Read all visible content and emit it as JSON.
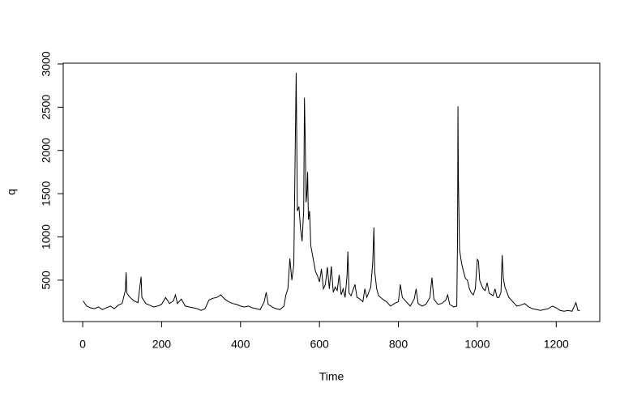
{
  "chart_data": {
    "type": "line",
    "xlabel": "Time",
    "ylabel": "q",
    "color": "#000000",
    "x": [
      1,
      10,
      20,
      30,
      40,
      50,
      60,
      70,
      80,
      90,
      100,
      108,
      110,
      112,
      120,
      130,
      140,
      148,
      150,
      160,
      170,
      180,
      190,
      200,
      210,
      220,
      230,
      235,
      240,
      250,
      260,
      270,
      280,
      290,
      300,
      310,
      320,
      330,
      340,
      350,
      360,
      370,
      380,
      390,
      400,
      410,
      420,
      430,
      440,
      450,
      460,
      465,
      470,
      480,
      490,
      500,
      510,
      515,
      520,
      525,
      530,
      535,
      538,
      541,
      544,
      548,
      552,
      556,
      560,
      562,
      564,
      566,
      568,
      570,
      572,
      575,
      578,
      582,
      586,
      590,
      595,
      600,
      605,
      610,
      615,
      620,
      625,
      630,
      635,
      640,
      645,
      650,
      655,
      660,
      665,
      670,
      672,
      675,
      680,
      690,
      695,
      700,
      710,
      715,
      720,
      730,
      735,
      738,
      740,
      745,
      750,
      760,
      770,
      780,
      790,
      800,
      805,
      810,
      820,
      830,
      840,
      845,
      850,
      860,
      870,
      880,
      885,
      890,
      900,
      910,
      920,
      925,
      930,
      940,
      948,
      950,
      951,
      952,
      955,
      960,
      965,
      970,
      975,
      980,
      985,
      990,
      995,
      1000,
      1003,
      1006,
      1010,
      1015,
      1020,
      1025,
      1030,
      1040,
      1045,
      1050,
      1055,
      1060,
      1063,
      1066,
      1070,
      1080,
      1090,
      1100,
      1110,
      1120,
      1130,
      1140,
      1150,
      1160,
      1170,
      1180,
      1190,
      1200,
      1210,
      1220,
      1230,
      1240,
      1250,
      1255,
      1260
    ],
    "values": [
      260,
      200,
      180,
      170,
      190,
      160,
      180,
      200,
      170,
      210,
      230,
      380,
      590,
      350,
      300,
      260,
      240,
      540,
      300,
      230,
      210,
      190,
      200,
      220,
      300,
      230,
      260,
      330,
      230,
      280,
      200,
      190,
      180,
      170,
      150,
      170,
      270,
      290,
      300,
      330,
      280,
      250,
      230,
      220,
      200,
      190,
      200,
      180,
      170,
      160,
      250,
      360,
      220,
      190,
      170,
      160,
      200,
      330,
      400,
      750,
      500,
      680,
      1800,
      2898,
      1300,
      1350,
      1100,
      950,
      1300,
      2610,
      2100,
      1400,
      1500,
      1750,
      1200,
      1300,
      900,
      800,
      700,
      600,
      550,
      480,
      630,
      400,
      450,
      650,
      400,
      660,
      360,
      420,
      380,
      560,
      330,
      400,
      300,
      560,
      830,
      350,
      320,
      450,
      300,
      290,
      250,
      400,
      300,
      420,
      700,
      1110,
      600,
      400,
      320,
      280,
      250,
      200,
      230,
      250,
      450,
      300,
      250,
      200,
      280,
      400,
      230,
      200,
      220,
      300,
      530,
      280,
      220,
      230,
      270,
      330,
      220,
      190,
      200,
      1000,
      2510,
      1700,
      850,
      700,
      600,
      520,
      500,
      400,
      350,
      330,
      400,
      740,
      720,
      500,
      450,
      400,
      380,
      470,
      350,
      320,
      400,
      300,
      300,
      360,
      790,
      520,
      420,
      300,
      250,
      200,
      210,
      230,
      190,
      170,
      160,
      150,
      160,
      170,
      200,
      180,
      150,
      140,
      150,
      140,
      240,
      150,
      150
    ],
    "xlim": [
      -49.36,
      1310.36
    ],
    "ylim": [
      21,
      3009
    ],
    "xticks": [
      0,
      200,
      400,
      600,
      800,
      1000,
      1200
    ],
    "yticks": [
      500,
      1000,
      1500,
      2000,
      2500,
      3000
    ]
  }
}
